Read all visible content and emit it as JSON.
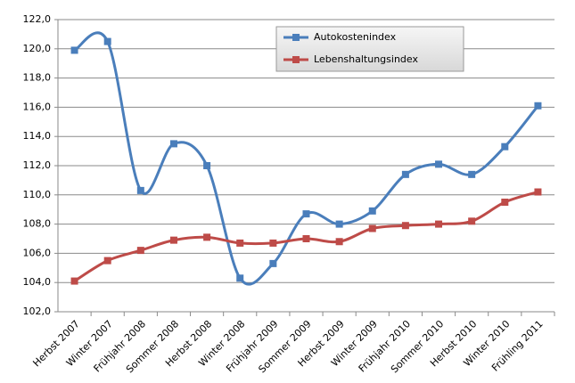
{
  "chart_data": {
    "type": "line",
    "categories": [
      "Herbst 2007",
      "Winter 2007",
      "Frühjahr 2008",
      "Sommer 2008",
      "Herbst 2008",
      "Winter 2008",
      "Frühjahr 2009",
      "Sommer 2009",
      "Herbst 2009",
      "Winter 2009",
      "Frühjahr 2010",
      "Sommer 2010",
      "Herbst 2010",
      "Winter 2010",
      "Frühling 2011"
    ],
    "series": [
      {
        "name": "Autokostenindex",
        "color": "#4a7ebb",
        "values": [
          119.9,
          120.5,
          110.3,
          113.5,
          112.0,
          104.3,
          105.3,
          108.7,
          108.0,
          108.9,
          111.4,
          112.1,
          111.4,
          113.3,
          116.1
        ]
      },
      {
        "name": "Lebenshaltungsindex",
        "color": "#be4b48",
        "values": [
          104.1,
          105.5,
          106.2,
          106.9,
          107.1,
          106.7,
          106.7,
          107.0,
          106.8,
          107.7,
          107.9,
          108.0,
          108.2,
          109.5,
          110.2
        ]
      }
    ],
    "ylim": [
      102,
      122
    ],
    "yticks": [
      {
        "value": 102,
        "label": "102,0"
      },
      {
        "value": 104,
        "label": "104,0"
      },
      {
        "value": 106,
        "label": "106,0"
      },
      {
        "value": 108,
        "label": "108,0"
      },
      {
        "value": 110,
        "label": "110,0"
      },
      {
        "value": 112,
        "label": "112,0"
      },
      {
        "value": 114,
        "label": "114,0"
      },
      {
        "value": 116,
        "label": "116,0"
      },
      {
        "value": 118,
        "label": "118,0"
      },
      {
        "value": 120,
        "label": "120,0"
      },
      {
        "value": 122,
        "label": "122,0"
      }
    ],
    "grid": true,
    "smooth": true,
    "legend": "top-center"
  }
}
